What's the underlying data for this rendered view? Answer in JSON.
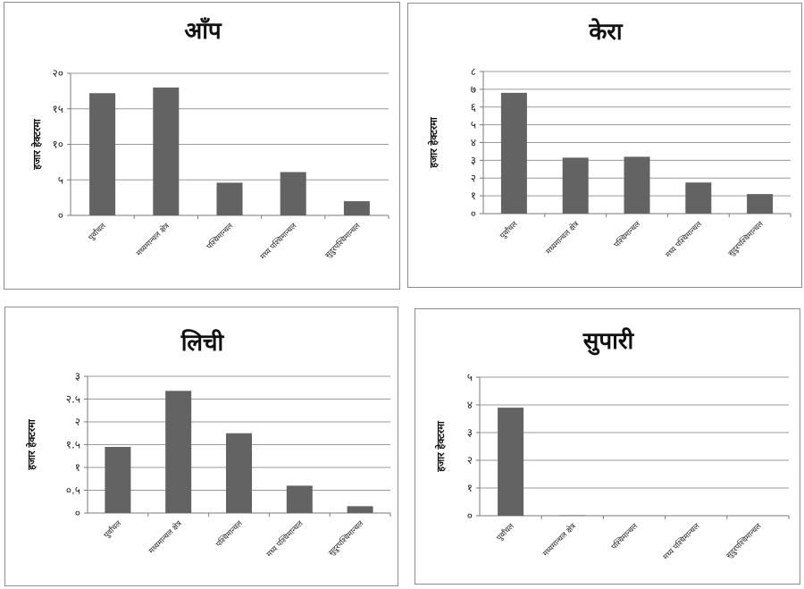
{
  "chart_data": [
    {
      "type": "bar",
      "title": "आँप",
      "ylabel": "हजार हेक्टरमा",
      "categories": [
        "पुर्वांचल",
        "मध्यमान्चल क्षेत्र",
        "पश्चिमान्चल",
        "मध्य पश्चिमान्चल",
        "सुदुरपश्चिमान्चल"
      ],
      "values": [
        17.2,
        18.0,
        4.6,
        6.1,
        2.0
      ],
      "ylim": [
        0,
        20
      ],
      "yticks": [
        0,
        5,
        10,
        15,
        20
      ],
      "ytick_labels": [
        "०",
        "५",
        "१०",
        "१५",
        "२०"
      ],
      "grid": true,
      "bar_color": "#636363"
    },
    {
      "type": "bar",
      "title": "केरा",
      "ylabel": "हजार हेक्टरमा",
      "categories": [
        "पुर्वांचल",
        "मध्यमान्चल क्षेत्र",
        "पश्चिमान्चल",
        "मध्य पश्चिमान्चल",
        "सुदुरपश्चिमान्चल"
      ],
      "values": [
        6.8,
        3.15,
        3.2,
        1.75,
        1.1
      ],
      "ylim": [
        0,
        8
      ],
      "yticks": [
        0,
        1,
        2,
        3,
        4,
        5,
        6,
        7,
        8
      ],
      "ytick_labels": [
        "०",
        "१",
        "२",
        "३",
        "४",
        "५",
        "६",
        "७",
        "८"
      ],
      "grid": true,
      "bar_color": "#636363"
    },
    {
      "type": "bar",
      "title": "लिची",
      "ylabel": "हजार हेक्टरमा",
      "categories": [
        "पुर्वांचल",
        "मध्यमान्चल क्षेत्र",
        "पश्चिमान्चल",
        "मध्य पश्चिमान्चल",
        "सुदुरपश्चिमान्चल"
      ],
      "values": [
        1.45,
        2.68,
        1.75,
        0.6,
        0.15
      ],
      "ylim": [
        0,
        3
      ],
      "yticks": [
        0,
        0.5,
        1,
        1.5,
        2,
        2.5,
        3
      ],
      "ytick_labels": [
        "०",
        "०.५",
        "१",
        "१.५",
        "२",
        "२.५",
        "३"
      ],
      "grid": true,
      "bar_color": "#636363"
    },
    {
      "type": "bar",
      "title": "सुपारी",
      "ylabel": "हजार हेक्टरमा",
      "categories": [
        "पुर्वांचल",
        "मध्यमान्चल क्षेत्र",
        "पश्चिमान्चल",
        "मध्य पश्चिमान्चल",
        "सुदुरपश्चिमान्चल"
      ],
      "values": [
        3.9,
        0.02,
        0,
        0,
        0
      ],
      "ylim": [
        0,
        5
      ],
      "yticks": [
        0,
        1,
        2,
        3,
        4,
        5
      ],
      "ytick_labels": [
        "०",
        "१",
        "२",
        "३",
        "४",
        "५"
      ],
      "grid": true,
      "bar_color": "#636363"
    }
  ]
}
